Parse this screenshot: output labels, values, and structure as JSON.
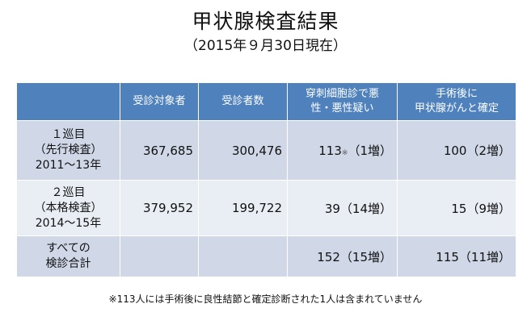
{
  "title": "甲状腺検査結果",
  "subtitle": "（2015年９月30日現在）",
  "table": {
    "headers": {
      "blank": "",
      "targets": "受診対象者",
      "examinees": "受診者数",
      "suspected_line1": "穿刺細胞診で悪",
      "suspected_line2": "性・悪性疑い",
      "confirmed_line1": "手術後に",
      "confirmed_line2": "甲状腺がんと確定"
    },
    "rows": [
      {
        "label_line1": "１巡目",
        "label_line2": "（先行検査）",
        "label_line3": "2011～13年",
        "targets": "367,685",
        "examinees": "300,476",
        "suspected": "113",
        "suspected_mark": "※",
        "suspected_increase": "（1増）",
        "confirmed": "100（2増）"
      },
      {
        "label_line1": "２巡目",
        "label_line2": "（本格検査）",
        "label_line3": "2014～15年",
        "targets": "379,952",
        "examinees": "199,722",
        "suspected": "39（14増）",
        "confirmed": "15（9増）"
      },
      {
        "label_line1": "すべての",
        "label_line2": "検診合計",
        "targets": "",
        "examinees": "",
        "suspected": "152（15増）",
        "confirmed": "115（11増）"
      }
    ]
  },
  "footnote": "※113人には手術後に良性結節と確定診断された1人は含まれていません",
  "colors": {
    "header_bg": "#4f81bd",
    "row_dark": "#d0d8e8",
    "row_light": "#e9edf4"
  }
}
